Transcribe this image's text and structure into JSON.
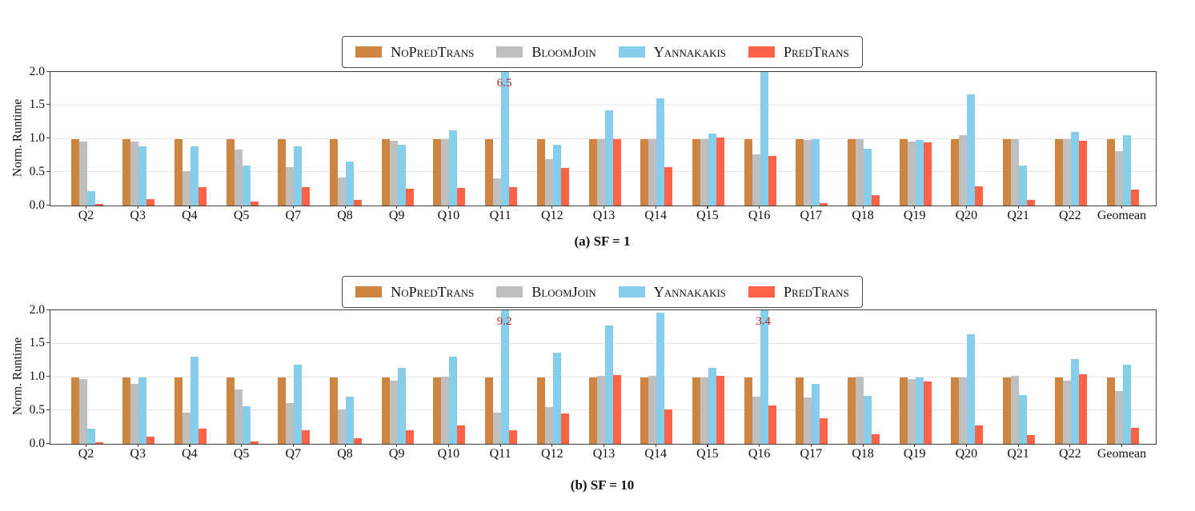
{
  "page": {
    "background": "#ffffff"
  },
  "legend": {
    "entries": [
      {
        "label": "NoPredTrans",
        "color": "#CD853F"
      },
      {
        "label": "BloomJoin",
        "color": "#BFBFBF"
      },
      {
        "label": "Yannakakis",
        "color": "#87CEEB"
      },
      {
        "label": "PredTrans",
        "color": "#FF6347"
      }
    ]
  },
  "annotation_color": "#B22222",
  "chart_data": [
    {
      "id": "a",
      "type": "bar",
      "caption": "(a) SF = 1",
      "ylabel": "Norm. Runtime",
      "ylim": [
        0,
        2.0
      ],
      "ytick_labels": [
        "0.0",
        "0.5",
        "1.0",
        "1.5",
        "2.0"
      ],
      "grid": true,
      "legend_position": "top-center",
      "categories": [
        "Q2",
        "Q3",
        "Q4",
        "Q5",
        "Q7",
        "Q8",
        "Q9",
        "Q10",
        "Q11",
        "Q12",
        "Q13",
        "Q14",
        "Q15",
        "Q16",
        "Q17",
        "Q18",
        "Q19",
        "Q20",
        "Q21",
        "Q22",
        "Geomean"
      ],
      "series": [
        {
          "name": "NoPredTrans",
          "color": "#CD853F",
          "values": [
            1.0,
            1.0,
            1.0,
            1.0,
            1.0,
            1.0,
            1.0,
            1.0,
            1.0,
            1.0,
            1.0,
            1.0,
            1.0,
            1.0,
            1.0,
            1.0,
            1.0,
            1.0,
            1.0,
            1.0,
            1.0
          ]
        },
        {
          "name": "BloomJoin",
          "color": "#BFBFBF",
          "values": [
            0.96,
            0.96,
            0.51,
            0.84,
            0.58,
            0.42,
            0.97,
            1.0,
            0.41,
            0.69,
            1.0,
            0.99,
            1.0,
            0.77,
            0.98,
            1.0,
            0.96,
            1.05,
            1.0,
            0.99,
            0.82
          ]
        },
        {
          "name": "Yannakakis",
          "color": "#87CEEB",
          "values": [
            0.21,
            0.89,
            0.89,
            0.6,
            0.89,
            0.66,
            0.91,
            1.12,
            6.5,
            0.91,
            1.42,
            1.6,
            1.08,
            2.0,
            0.99,
            0.85,
            0.98,
            1.67,
            0.6,
            1.1,
            1.05
          ]
        },
        {
          "name": "PredTrans",
          "color": "#FF6347",
          "values": [
            0.03,
            0.1,
            0.28,
            0.06,
            0.27,
            0.09,
            0.25,
            0.26,
            0.28,
            0.56,
            1.0,
            0.58,
            1.02,
            0.74,
            0.04,
            0.15,
            0.95,
            0.29,
            0.09,
            0.97,
            0.24
          ]
        }
      ],
      "annotations": [
        {
          "category": "Q11",
          "series": "Yannakakis",
          "text": "6.5"
        }
      ]
    },
    {
      "id": "b",
      "type": "bar",
      "caption": "(b) SF = 10",
      "ylabel": "Norm. Runtime",
      "ylim": [
        0,
        2.0
      ],
      "ytick_labels": [
        "0.0",
        "0.5",
        "1.0",
        "1.5",
        "2.0"
      ],
      "grid": true,
      "legend_position": "top-center",
      "categories": [
        "Q2",
        "Q3",
        "Q4",
        "Q5",
        "Q7",
        "Q8",
        "Q9",
        "Q10",
        "Q11",
        "Q12",
        "Q13",
        "Q14",
        "Q15",
        "Q16",
        "Q17",
        "Q18",
        "Q19",
        "Q20",
        "Q21",
        "Q22",
        "Geomean"
      ],
      "series": [
        {
          "name": "NoPredTrans",
          "color": "#CD853F",
          "values": [
            1.0,
            1.0,
            1.0,
            1.0,
            1.0,
            1.0,
            1.0,
            1.0,
            1.0,
            1.0,
            1.0,
            1.0,
            1.0,
            1.0,
            1.0,
            1.0,
            1.0,
            1.0,
            1.0,
            1.0,
            1.0
          ]
        },
        {
          "name": "BloomJoin",
          "color": "#BFBFBF",
          "values": [
            0.97,
            0.9,
            0.47,
            0.82,
            0.61,
            0.51,
            0.95,
            1.01,
            0.47,
            0.55,
            1.02,
            1.02,
            0.99,
            0.71,
            0.69,
            1.01,
            0.97,
            0.99,
            1.02,
            0.95,
            0.79
          ]
        },
        {
          "name": "Yannakakis",
          "color": "#87CEEB",
          "values": [
            0.23,
            0.99,
            1.31,
            0.56,
            1.18,
            0.71,
            1.14,
            1.3,
            9.2,
            1.36,
            1.77,
            1.96,
            1.14,
            3.4,
            0.9,
            0.72,
            0.99,
            1.64,
            0.73,
            1.27,
            1.18
          ]
        },
        {
          "name": "PredTrans",
          "color": "#FF6347",
          "values": [
            0.02,
            0.11,
            0.23,
            0.04,
            0.2,
            0.09,
            0.2,
            0.28,
            0.2,
            0.45,
            1.03,
            0.51,
            1.02,
            0.57,
            0.38,
            0.14,
            0.94,
            0.27,
            0.13,
            1.04,
            0.24
          ]
        }
      ],
      "annotations": [
        {
          "category": "Q11",
          "series": "Yannakakis",
          "text": "9.2"
        },
        {
          "category": "Q16",
          "series": "Yannakakis",
          "text": "3.4"
        }
      ]
    }
  ]
}
